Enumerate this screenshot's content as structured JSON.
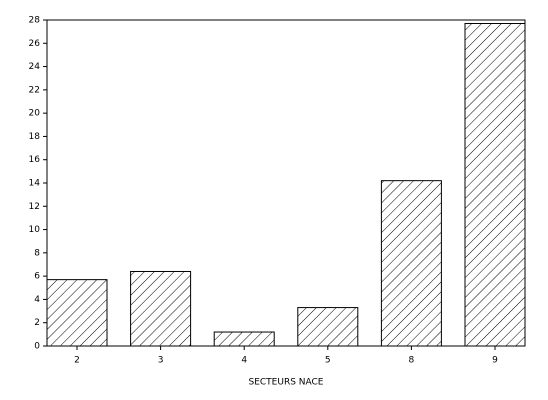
{
  "chart_data": {
    "type": "bar",
    "x_label": "SECTEURS NACE",
    "categories": [
      "2",
      "3",
      "4",
      "5",
      "8",
      "9"
    ],
    "values": [
      5.7,
      6.4,
      1.2,
      3.3,
      14.2,
      27.7
    ],
    "ylim": [
      0,
      28
    ],
    "yticks": [
      0,
      2,
      4,
      6,
      8,
      10,
      12,
      14,
      16,
      18,
      20,
      22,
      24,
      26,
      28
    ],
    "color": "#000000",
    "hatch": true
  }
}
